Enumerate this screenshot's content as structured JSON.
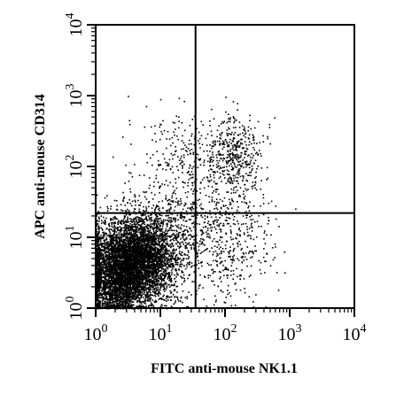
{
  "chart_data": {
    "type": "scatter",
    "subtype": "flow-cytometry dot plot (log-log, quadrant gated)",
    "xlabel": "FITC anti-mouse NK1.1",
    "ylabel": "APC anti-mouse CD314",
    "x_scale": "log10",
    "y_scale": "log10",
    "xlim": [
      1,
      10000
    ],
    "ylim": [
      1,
      10000
    ],
    "x_ticks": [
      {
        "value": 1,
        "base": "10",
        "exp": "0"
      },
      {
        "value": 10,
        "base": "10",
        "exp": "1"
      },
      {
        "value": 100,
        "base": "10",
        "exp": "2"
      },
      {
        "value": 1000,
        "base": "10",
        "exp": "3"
      },
      {
        "value": 10000,
        "base": "10",
        "exp": "4"
      }
    ],
    "y_ticks": [
      {
        "value": 1,
        "base": "10",
        "exp": "0"
      },
      {
        "value": 10,
        "base": "10",
        "exp": "1"
      },
      {
        "value": 100,
        "base": "10",
        "exp": "2"
      },
      {
        "value": 1000,
        "base": "10",
        "exp": "3"
      },
      {
        "value": 10000,
        "base": "10",
        "exp": "4"
      }
    ],
    "quadrant_gates": {
      "x": 35,
      "y": 22
    },
    "point_color": "#000000",
    "clusters": [
      {
        "center_x": 4,
        "center_y": 5,
        "spread_log_x": 0.32,
        "spread_log_y": 0.3,
        "count": 5200
      },
      {
        "center_x": 2,
        "center_y": 2,
        "spread_log_x": 0.22,
        "spread_log_y": 0.22,
        "count": 1400
      },
      {
        "center_x": 140,
        "center_y": 130,
        "spread_log_x": 0.22,
        "spread_log_y": 0.28,
        "count": 420
      },
      {
        "center_x": 25,
        "center_y": 140,
        "spread_log_x": 0.42,
        "spread_log_y": 0.35,
        "count": 280
      },
      {
        "center_x": 90,
        "center_y": 8,
        "spread_log_x": 0.4,
        "spread_log_y": 0.4,
        "count": 520
      },
      {
        "center_x": 18,
        "center_y": 18,
        "spread_log_x": 0.35,
        "spread_log_y": 0.25,
        "count": 300
      }
    ]
  }
}
